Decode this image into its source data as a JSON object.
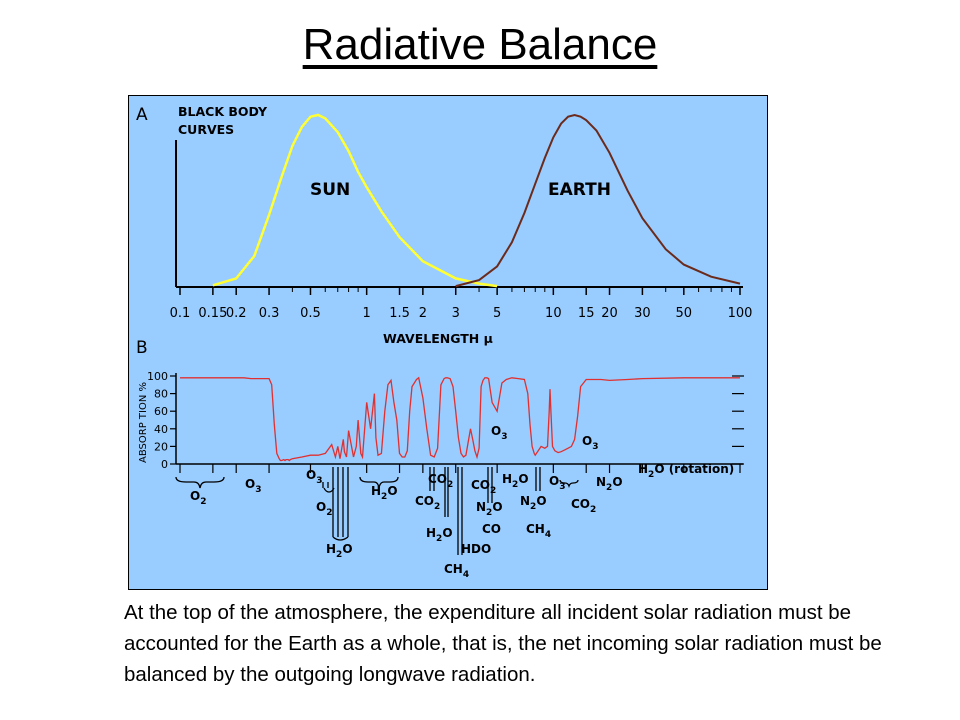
{
  "title": "Radiative Balance",
  "caption": "At the top of the atmosphere, the expenditure all incident solar radiation must be accounted for the Earth as a whole, that is, the net incoming solar radiation must be balanced by the outgoing longwave radiation.",
  "colors": {
    "panel_bg": "#99ccff",
    "sun_curve": "#ffff33",
    "earth_curve": "#6b2a1a",
    "absorption_curve": "#e03030"
  },
  "chart_data": [
    {
      "type": "line",
      "panel_label": "A",
      "title": "BLACK BODY CURVES",
      "title_lines": [
        "BLACK BODY",
        "CURVES"
      ],
      "xlabel": "WAVELENGTH μ",
      "x_scale": "log",
      "xlim": [
        0.1,
        100
      ],
      "x_tick_labels": [
        "0.1",
        "0.15",
        "0.2",
        "0.3",
        "0.5",
        "1",
        "1.5",
        "2",
        "3",
        "5",
        "10",
        "15",
        "20",
        "30",
        "50",
        "100"
      ],
      "x_tick_values": [
        0.1,
        0.15,
        0.2,
        0.3,
        0.5,
        1,
        1.5,
        2,
        3,
        5,
        10,
        15,
        20,
        30,
        50,
        100
      ],
      "series": [
        {
          "name": "SUN",
          "x": [
            0.15,
            0.2,
            0.25,
            0.3,
            0.35,
            0.4,
            0.45,
            0.5,
            0.55,
            0.6,
            0.7,
            0.8,
            0.9,
            1.0,
            1.2,
            1.5,
            2.0,
            3.0,
            4.0,
            5.0
          ],
          "y": [
            1,
            5,
            18,
            42,
            64,
            82,
            93,
            99,
            100,
            98,
            90,
            79,
            67,
            58,
            44,
            29,
            15,
            5,
            2,
            0.5
          ]
        },
        {
          "name": "EARTH",
          "x": [
            3,
            4,
            5,
            6,
            7,
            8,
            9,
            10,
            11,
            12,
            13,
            14,
            15,
            17,
            20,
            25,
            30,
            40,
            50,
            70,
            100
          ],
          "y": [
            0.5,
            4,
            12,
            26,
            43,
            60,
            75,
            87,
            95,
            99,
            100,
            99,
            97,
            91,
            78,
            56,
            40,
            22,
            13,
            6,
            2
          ]
        }
      ]
    },
    {
      "type": "line",
      "panel_label": "B",
      "ylabel": "ABSORP TION %",
      "x_scale": "log",
      "xlim": [
        0.1,
        100
      ],
      "ylim": [
        0,
        100
      ],
      "y_tick_labels": [
        "100",
        "80",
        "60",
        "40",
        "20",
        "0"
      ],
      "y_tick_values": [
        100,
        80,
        60,
        40,
        20,
        0
      ],
      "series": [
        {
          "x": [
            0.1,
            0.2,
            0.22,
            0.24,
            0.26,
            0.28,
            0.3,
            0.31,
            0.32,
            0.33,
            0.34,
            0.345,
            0.35,
            0.36,
            0.365,
            0.37,
            0.38,
            0.385,
            0.39,
            0.4,
            0.45,
            0.5,
            0.55,
            0.6,
            0.65,
            0.68,
            0.7,
            0.72,
            0.75,
            0.76,
            0.78,
            0.8,
            0.85,
            0.88,
            0.9,
            0.93,
            0.95,
            1.0,
            1.05,
            1.1,
            1.12,
            1.15,
            1.2,
            1.25,
            1.3,
            1.35,
            1.4,
            1.45,
            1.5,
            1.55,
            1.6,
            1.65,
            1.7,
            1.75,
            1.8,
            1.85,
            1.9,
            2.0,
            2.1,
            2.2,
            2.3,
            2.4,
            2.5,
            2.6,
            2.65,
            2.7,
            2.8,
            2.9,
            3.0,
            3.1,
            3.2,
            3.3,
            3.4,
            3.5,
            3.6,
            3.7,
            3.8,
            3.9,
            4.0,
            4.1,
            4.2,
            4.3,
            4.4,
            4.5,
            4.7,
            5.0,
            5.3,
            5.6,
            6.0,
            6.5,
            7.0,
            7.3,
            7.5,
            7.7,
            7.9,
            8.0,
            8.3,
            8.6,
            9.0,
            9.3,
            9.5,
            9.6,
            9.7,
            9.9,
            10.2,
            10.6,
            11.0,
            11.5,
            12.0,
            12.5,
            13.0,
            13.5,
            14.0,
            14.5,
            15.0,
            16.0,
            18.0,
            20.0,
            25.0,
            30.0,
            50.0,
            100.0
          ],
          "y": [
            98,
            98,
            98,
            97,
            97,
            97,
            97,
            90,
            45,
            12,
            6,
            4,
            4,
            5,
            4,
            5,
            5,
            4,
            5,
            6,
            8,
            10,
            10,
            12,
            22,
            8,
            20,
            6,
            28,
            14,
            8,
            38,
            8,
            20,
            50,
            12,
            8,
            70,
            40,
            80,
            30,
            10,
            12,
            60,
            90,
            95,
            70,
            50,
            12,
            8,
            8,
            15,
            60,
            88,
            92,
            96,
            98,
            75,
            40,
            10,
            8,
            18,
            90,
            97,
            98,
            98,
            97,
            88,
            60,
            30,
            12,
            8,
            10,
            25,
            40,
            28,
            15,
            8,
            18,
            88,
            95,
            98,
            98,
            97,
            70,
            60,
            92,
            96,
            98,
            97,
            96,
            80,
            45,
            20,
            12,
            10,
            15,
            20,
            18,
            20,
            60,
            85,
            60,
            20,
            15,
            13,
            14,
            16,
            18,
            20,
            28,
            55,
            88,
            92,
            96,
            96,
            96,
            95,
            96,
            97,
            98,
            98
          ]
        }
      ],
      "absorbers": [
        "O2",
        "O3",
        "O3",
        "O2",
        "H2O",
        "H2O",
        "CO2",
        "CO2",
        "H2O",
        "HDO",
        "CH4",
        "CO2",
        "O3",
        "N2O",
        "CO",
        "H2O",
        "N2O",
        "CH4",
        "O3",
        "O3",
        "CO2",
        "N2O",
        "H2O (rotation)"
      ]
    }
  ],
  "figure_labels": {
    "sun": "SUN",
    "earth": "EARTH",
    "gases": {
      "o2_a": "O",
      "o2_a_sub": "2",
      "o3_a": "O",
      "o3_a_sub": "3",
      "o3_b": "O",
      "o3_b_sub": "3",
      "o2_b": "O",
      "o2_b_sub": "2",
      "h2o_a": "H",
      "h2o_a_sub": "2",
      "h2o_a_end": "O",
      "h2o_b": "H",
      "h2o_b_sub": "2",
      "h2o_b_end": "O",
      "co2_a": "CO",
      "co2_a_sub": "2",
      "co2_b": "CO",
      "co2_b_sub": "2",
      "h2o_c": "H",
      "h2o_c_sub": "2",
      "h2o_c_end": "O",
      "hdo": "HDO",
      "ch4_a": "CH",
      "ch4_a_sub": "4",
      "co2_c": "CO",
      "co2_c_sub": "2",
      "o3_c": "O",
      "o3_c_sub": "3",
      "n2o_a": "N",
      "n2o_a_sub": "2",
      "n2o_a_end": "O",
      "co": "CO",
      "h2o_d": "H",
      "h2o_d_sub": "2",
      "h2o_d_end": "O",
      "n2o_b": "N",
      "n2o_b_sub": "2",
      "n2o_b_end": "O",
      "ch4_b": "CH",
      "ch4_b_sub": "4",
      "o3_d": "O",
      "o3_d_sub": "3",
      "o3_e": "O",
      "o3_e_sub": "3",
      "co2_d": "CO",
      "co2_d_sub": "2",
      "n2o_c": "N",
      "n2o_c_sub": "2",
      "n2o_c_end": "O",
      "h2o_rot": "H",
      "h2o_rot_sub": "2",
      "h2o_rot_end": "O (rotation)"
    }
  }
}
